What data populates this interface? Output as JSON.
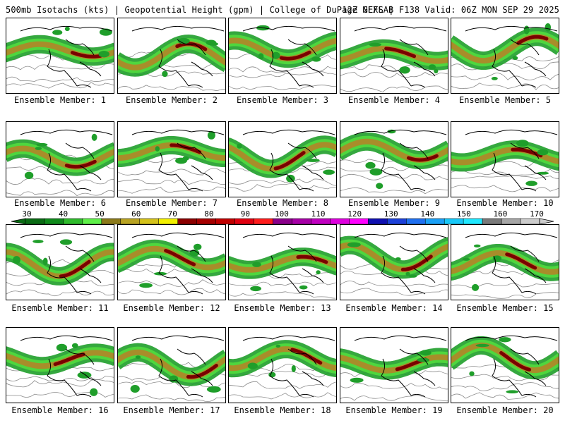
{
  "header": {
    "left": "500mb Isotachs (kts) | Geopotential Height (gpm) | College of DuPage NEXLAB",
    "right": "12Z GEFS | F138 Valid: 06Z MON SEP 29 2025"
  },
  "members": [
    "Ensemble Member: 1",
    "Ensemble Member: 2",
    "Ensemble Member: 3",
    "Ensemble Member: 4",
    "Ensemble Member: 5",
    "Ensemble Member: 6",
    "Ensemble Member: 7",
    "Ensemble Member: 8",
    "Ensemble Member: 9",
    "Ensemble Member: 10",
    "Ensemble Member: 11",
    "Ensemble Member: 12",
    "Ensemble Member: 13",
    "Ensemble Member: 14",
    "Ensemble Member: 15",
    "Ensemble Member: 16",
    "Ensemble Member: 17",
    "Ensemble Member: 18",
    "Ensemble Member: 19",
    "Ensemble Member: 20"
  ],
  "colorbar": {
    "units": "kts",
    "ticks": [
      "30",
      "40",
      "50",
      "60",
      "70",
      "80",
      "90",
      "100",
      "110",
      "120",
      "130",
      "140",
      "150",
      "160",
      "170"
    ],
    "colors": [
      "#0a6b14",
      "#0f8a1b",
      "#2fbb2c",
      "#5ff049",
      "#8b7a1a",
      "#b8a322",
      "#d4c21b",
      "#f2ef00",
      "#8b0000",
      "#a50000",
      "#c00000",
      "#e00010",
      "#ff1c1c",
      "#8a008a",
      "#a600a6",
      "#c000c0",
      "#dd00dd",
      "#ff00ff",
      "#1010b0",
      "#1c40d8",
      "#2070f0",
      "#1aa0f6",
      "#18c8f8",
      "#20e8ff",
      "#7a7a7a",
      "#a6a6a6",
      "#cccccc"
    ],
    "jet_colors": {
      "weak": "#1f9e2a",
      "mid": "#4fd63e",
      "strong": "#a88d2a",
      "core": "#7a0000"
    }
  }
}
